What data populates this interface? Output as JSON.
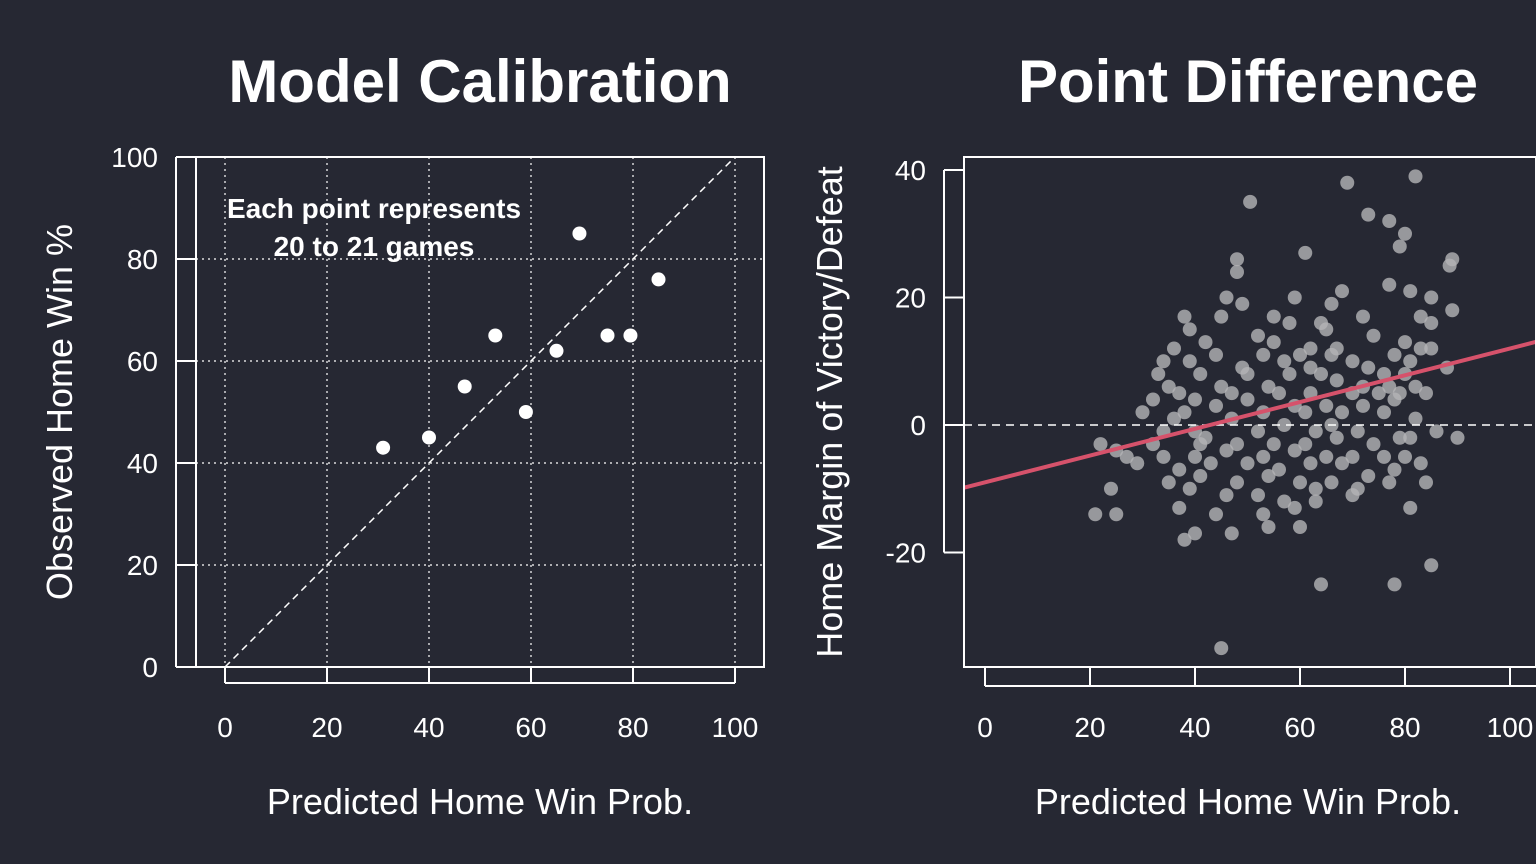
{
  "colors": {
    "background": "#262833",
    "foreground": "#ffffff",
    "trend_line": "#d6526b",
    "scatter_points": "#b4b4b6"
  },
  "chart_data": [
    {
      "type": "scatter",
      "title": "Model Calibration",
      "xlabel": "Predicted Home Win Prob.",
      "ylabel": "Observed Home Win %",
      "xlim": [
        -6,
        106
      ],
      "ylim": [
        0,
        100
      ],
      "xticks": [
        "0",
        "20",
        "40",
        "60",
        "80",
        "100"
      ],
      "yticks": [
        "0",
        "20",
        "40",
        "60",
        "80",
        "100"
      ],
      "grid": true,
      "reference_line": "y = x (dashed)",
      "annotation": [
        "Each point represents",
        "20 to 21 games"
      ],
      "points": [
        {
          "x": 31,
          "y": 43
        },
        {
          "x": 40,
          "y": 45
        },
        {
          "x": 47,
          "y": 55
        },
        {
          "x": 53,
          "y": 65
        },
        {
          "x": 59,
          "y": 50
        },
        {
          "x": 65,
          "y": 62
        },
        {
          "x": 69.5,
          "y": 85
        },
        {
          "x": 75,
          "y": 65
        },
        {
          "x": 79.5,
          "y": 65
        },
        {
          "x": 85,
          "y": 76
        }
      ]
    },
    {
      "type": "scatter",
      "title": "Point Difference",
      "xlabel": "Predicted Home Win Prob.",
      "ylabel": "Home Margin of Victory/Defeat",
      "xlim": [
        -4,
        106
      ],
      "ylim": [
        -38,
        42
      ],
      "xticks": [
        "0",
        "20",
        "40",
        "60",
        "80",
        "100"
      ],
      "yticks": [
        "-20",
        "0",
        "20",
        "40"
      ],
      "grid": false,
      "reference_line": "y = 0 (dashed)",
      "trend_line": {
        "intercept": -9,
        "slope": 0.21
      },
      "points": [
        {
          "x": 45,
          "y": -35
        },
        {
          "x": 50.5,
          "y": 35
        },
        {
          "x": 69,
          "y": 38
        },
        {
          "x": 82,
          "y": 39
        },
        {
          "x": 73,
          "y": 33
        },
        {
          "x": 77,
          "y": 32
        },
        {
          "x": 80,
          "y": 30
        },
        {
          "x": 79,
          "y": 28
        },
        {
          "x": 61,
          "y": 27
        },
        {
          "x": 48,
          "y": 26
        },
        {
          "x": 48,
          "y": 24
        },
        {
          "x": 89,
          "y": 26
        },
        {
          "x": 88.5,
          "y": 25
        },
        {
          "x": 68,
          "y": 21
        },
        {
          "x": 77,
          "y": 22
        },
        {
          "x": 81,
          "y": 21
        },
        {
          "x": 85,
          "y": 20
        },
        {
          "x": 46,
          "y": 20
        },
        {
          "x": 49,
          "y": 19
        },
        {
          "x": 59,
          "y": 20
        },
        {
          "x": 66,
          "y": 19
        },
        {
          "x": 89,
          "y": 18
        },
        {
          "x": 83,
          "y": 17
        },
        {
          "x": 38,
          "y": 17
        },
        {
          "x": 55,
          "y": 17
        },
        {
          "x": 45,
          "y": 17
        },
        {
          "x": 64,
          "y": 16
        },
        {
          "x": 72,
          "y": 17
        },
        {
          "x": 85,
          "y": 16
        },
        {
          "x": 58,
          "y": 16
        },
        {
          "x": 39,
          "y": 15
        },
        {
          "x": 52,
          "y": 14
        },
        {
          "x": 65,
          "y": 15
        },
        {
          "x": 74,
          "y": 14
        },
        {
          "x": 36,
          "y": 12
        },
        {
          "x": 42,
          "y": 13
        },
        {
          "x": 55,
          "y": 13
        },
        {
          "x": 62,
          "y": 12
        },
        {
          "x": 67,
          "y": 12
        },
        {
          "x": 80,
          "y": 13
        },
        {
          "x": 83,
          "y": 12
        },
        {
          "x": 85,
          "y": 12
        },
        {
          "x": 44,
          "y": 11
        },
        {
          "x": 53,
          "y": 11
        },
        {
          "x": 57,
          "y": 10
        },
        {
          "x": 60,
          "y": 11
        },
        {
          "x": 66,
          "y": 11
        },
        {
          "x": 70,
          "y": 10
        },
        {
          "x": 78,
          "y": 11
        },
        {
          "x": 81,
          "y": 10
        },
        {
          "x": 34,
          "y": 10
        },
        {
          "x": 39,
          "y": 10
        },
        {
          "x": 49,
          "y": 9
        },
        {
          "x": 62,
          "y": 9
        },
        {
          "x": 73,
          "y": 9
        },
        {
          "x": 88,
          "y": 9
        },
        {
          "x": 33,
          "y": 8
        },
        {
          "x": 41,
          "y": 8
        },
        {
          "x": 50,
          "y": 8
        },
        {
          "x": 58,
          "y": 8
        },
        {
          "x": 64,
          "y": 8
        },
        {
          "x": 76,
          "y": 8
        },
        {
          "x": 80,
          "y": 8
        },
        {
          "x": 35,
          "y": 6
        },
        {
          "x": 45,
          "y": 6
        },
        {
          "x": 54,
          "y": 6
        },
        {
          "x": 67,
          "y": 7
        },
        {
          "x": 72,
          "y": 6
        },
        {
          "x": 77,
          "y": 6
        },
        {
          "x": 82,
          "y": 6
        },
        {
          "x": 37,
          "y": 5
        },
        {
          "x": 47,
          "y": 5
        },
        {
          "x": 56,
          "y": 5
        },
        {
          "x": 62,
          "y": 5
        },
        {
          "x": 70,
          "y": 5
        },
        {
          "x": 75,
          "y": 5
        },
        {
          "x": 79,
          "y": 5
        },
        {
          "x": 84,
          "y": 5
        },
        {
          "x": 32,
          "y": 4
        },
        {
          "x": 40,
          "y": 4
        },
        {
          "x": 50,
          "y": 4
        },
        {
          "x": 59,
          "y": 3
        },
        {
          "x": 65,
          "y": 3
        },
        {
          "x": 72,
          "y": 3
        },
        {
          "x": 78,
          "y": 4
        },
        {
          "x": 30,
          "y": 2
        },
        {
          "x": 38,
          "y": 2
        },
        {
          "x": 44,
          "y": 3
        },
        {
          "x": 53,
          "y": 2
        },
        {
          "x": 61,
          "y": 2
        },
        {
          "x": 68,
          "y": 2
        },
        {
          "x": 76,
          "y": 2
        },
        {
          "x": 36,
          "y": 1
        },
        {
          "x": 47,
          "y": 1
        },
        {
          "x": 57,
          "y": 0
        },
        {
          "x": 66,
          "y": 0
        },
        {
          "x": 82,
          "y": 1
        },
        {
          "x": 34,
          "y": -1
        },
        {
          "x": 40,
          "y": -1
        },
        {
          "x": 52,
          "y": -1
        },
        {
          "x": 63,
          "y": -1
        },
        {
          "x": 71,
          "y": -1
        },
        {
          "x": 86,
          "y": -1
        },
        {
          "x": 90,
          "y": -2
        },
        {
          "x": 22,
          "y": -3
        },
        {
          "x": 25,
          "y": -4
        },
        {
          "x": 32,
          "y": -3
        },
        {
          "x": 41,
          "y": -3
        },
        {
          "x": 48,
          "y": -3
        },
        {
          "x": 55,
          "y": -3
        },
        {
          "x": 61,
          "y": -3
        },
        {
          "x": 67,
          "y": -2
        },
        {
          "x": 74,
          "y": -3
        },
        {
          "x": 79,
          "y": -2
        },
        {
          "x": 81,
          "y": -2
        },
        {
          "x": 27,
          "y": -5
        },
        {
          "x": 34,
          "y": -5
        },
        {
          "x": 40,
          "y": -5
        },
        {
          "x": 46,
          "y": -4
        },
        {
          "x": 53,
          "y": -5
        },
        {
          "x": 59,
          "y": -4
        },
        {
          "x": 65,
          "y": -5
        },
        {
          "x": 70,
          "y": -5
        },
        {
          "x": 76,
          "y": -5
        },
        {
          "x": 80,
          "y": -5
        },
        {
          "x": 29,
          "y": -6
        },
        {
          "x": 37,
          "y": -7
        },
        {
          "x": 43,
          "y": -6
        },
        {
          "x": 50,
          "y": -6
        },
        {
          "x": 56,
          "y": -7
        },
        {
          "x": 62,
          "y": -6
        },
        {
          "x": 68,
          "y": -6
        },
        {
          "x": 73,
          "y": -8
        },
        {
          "x": 78,
          "y": -7
        },
        {
          "x": 83,
          "y": -6
        },
        {
          "x": 35,
          "y": -9
        },
        {
          "x": 41,
          "y": -8
        },
        {
          "x": 48,
          "y": -9
        },
        {
          "x": 54,
          "y": -8
        },
        {
          "x": 60,
          "y": -9
        },
        {
          "x": 66,
          "y": -9
        },
        {
          "x": 71,
          "y": -10
        },
        {
          "x": 77,
          "y": -9
        },
        {
          "x": 84,
          "y": -9
        },
        {
          "x": 24,
          "y": -10
        },
        {
          "x": 39,
          "y": -10
        },
        {
          "x": 46,
          "y": -11
        },
        {
          "x": 52,
          "y": -11
        },
        {
          "x": 57,
          "y": -12
        },
        {
          "x": 63,
          "y": -12
        },
        {
          "x": 70,
          "y": -11
        },
        {
          "x": 81,
          "y": -13
        },
        {
          "x": 21,
          "y": -14
        },
        {
          "x": 25,
          "y": -14
        },
        {
          "x": 37,
          "y": -13
        },
        {
          "x": 44,
          "y": -14
        },
        {
          "x": 53,
          "y": -14
        },
        {
          "x": 59,
          "y": -13
        },
        {
          "x": 40,
          "y": -17
        },
        {
          "x": 47,
          "y": -17
        },
        {
          "x": 54,
          "y": -16
        },
        {
          "x": 60,
          "y": -16
        },
        {
          "x": 38,
          "y": -18
        },
        {
          "x": 64,
          "y": -25
        },
        {
          "x": 78,
          "y": -25
        },
        {
          "x": 85,
          "y": -22
        },
        {
          "x": 63,
          "y": -10
        },
        {
          "x": 42,
          "y": -2
        }
      ]
    }
  ]
}
